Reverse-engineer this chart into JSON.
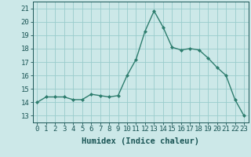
{
  "x": [
    0,
    1,
    2,
    3,
    4,
    5,
    6,
    7,
    8,
    9,
    10,
    11,
    12,
    13,
    14,
    15,
    16,
    17,
    18,
    19,
    20,
    21,
    22,
    23
  ],
  "y": [
    14.0,
    14.4,
    14.4,
    14.4,
    14.2,
    14.2,
    14.6,
    14.5,
    14.4,
    14.5,
    16.0,
    17.2,
    19.3,
    20.8,
    19.6,
    18.1,
    17.9,
    18.0,
    17.9,
    17.3,
    16.6,
    16.0,
    14.2,
    13.0
  ],
  "line_color": "#2e7d6e",
  "marker_color": "#2e7d6e",
  "bg_color": "#cce8e8",
  "grid_color": "#99cccc",
  "xlabel": "Humidex (Indice chaleur)",
  "ylim": [
    12.5,
    21.5
  ],
  "xlim": [
    -0.5,
    23.5
  ],
  "yticks": [
    13,
    14,
    15,
    16,
    17,
    18,
    19,
    20,
    21
  ],
  "xticks": [
    0,
    1,
    2,
    3,
    4,
    5,
    6,
    7,
    8,
    9,
    10,
    11,
    12,
    13,
    14,
    15,
    16,
    17,
    18,
    19,
    20,
    21,
    22,
    23
  ],
  "xlabel_fontsize": 7.5,
  "tick_fontsize": 6.5,
  "text_color": "#1a5555"
}
